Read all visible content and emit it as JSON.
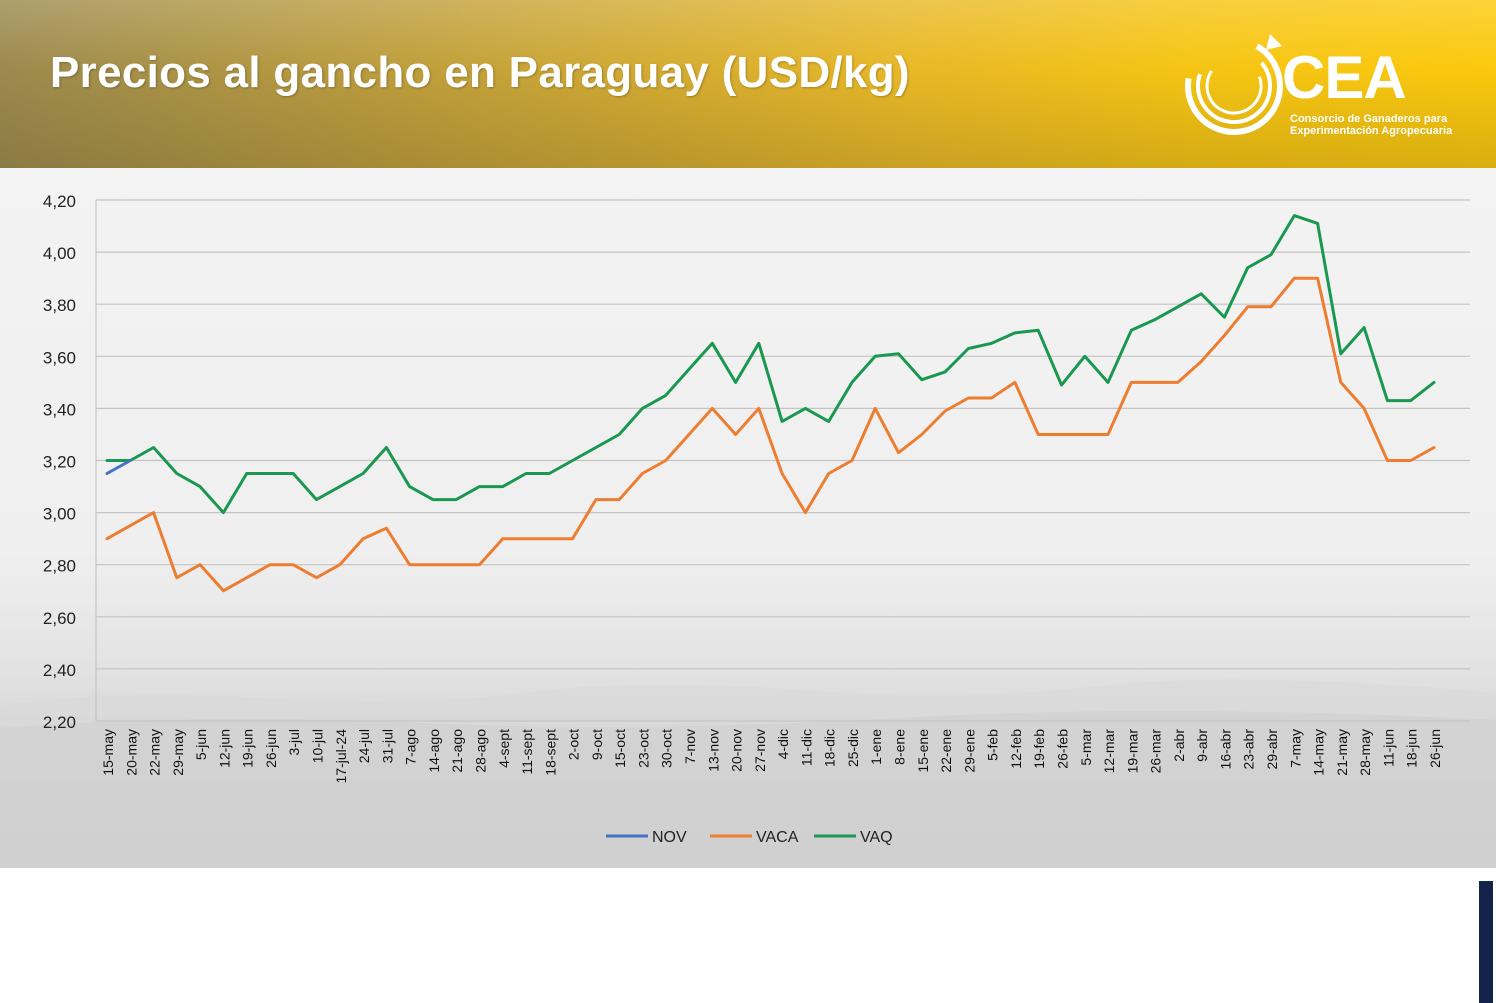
{
  "header": {
    "title": "Precios al gancho en Paraguay (USD/kg)"
  },
  "logo": {
    "name": "CEA",
    "subtitle_line1": "Consorcio de Ganaderos para",
    "subtitle_line2": "Experimentación Agropecuaria"
  },
  "colors": {
    "NOV": "#4472c4",
    "VACA": "#ed7d31",
    "VAQ": "#1a9850",
    "header_accent": "#f6c514",
    "side_bar": "#14234b"
  },
  "chart_data": {
    "type": "line",
    "title": "Precios al gancho en Paraguay (USD/kg)",
    "xlabel": "",
    "ylabel": "",
    "ylim": [
      2.2,
      4.2
    ],
    "yticks": [
      "2,20",
      "2,40",
      "2,60",
      "2,80",
      "3,00",
      "3,20",
      "3,40",
      "3,60",
      "3,80",
      "4,00",
      "4,20"
    ],
    "grid": true,
    "legend_position": "bottom",
    "categories": [
      "15-may",
      "20-may",
      "22-may",
      "29-may",
      "5-jun",
      "12-jun",
      "19-jun",
      "26-jun",
      "3-jul",
      "10-jul",
      "17-jul-24",
      "24-jul",
      "31-jul",
      "7-ago",
      "14-ago",
      "21-ago",
      "28-ago",
      "4-sept",
      "11-sept",
      "18-sept",
      "2-oct",
      "9-oct",
      "15-oct",
      "23-oct",
      "30-oct",
      "7-nov",
      "13-nov",
      "20-nov",
      "27-nov",
      "4-dic",
      "11-dic",
      "18-dic",
      "25-dic",
      "1-ene",
      "8-ene",
      "15-ene",
      "22-ene",
      "29-ene",
      "5-feb",
      "12-feb",
      "19-feb",
      "26-feb",
      "5-mar",
      "12-mar",
      "19-mar",
      "26-mar",
      "2-abr",
      "9-abr",
      "16-abr",
      "23-abr",
      "29-abr",
      "7-may",
      "14-may",
      "21-may",
      "28-may",
      "11-jun",
      "18-jun",
      "26-jun"
    ],
    "series": [
      {
        "name": "NOV",
        "values": [
          3.15,
          3.2,
          null,
          null,
          null,
          null,
          null,
          null,
          null,
          null,
          null,
          null,
          null,
          null,
          null,
          null,
          null,
          null,
          null,
          null,
          null,
          null,
          null,
          null,
          null,
          null,
          null,
          null,
          null,
          null,
          null,
          null,
          null,
          null,
          null,
          null,
          null,
          null,
          null,
          null,
          null,
          null,
          null,
          null,
          null,
          null,
          null,
          null,
          null,
          null,
          null,
          null,
          null,
          null,
          null,
          null,
          null,
          null
        ]
      },
      {
        "name": "VACA",
        "values": [
          2.9,
          2.95,
          3.0,
          2.75,
          2.8,
          2.7,
          2.75,
          2.8,
          2.8,
          2.75,
          2.8,
          2.9,
          2.94,
          2.8,
          2.8,
          2.8,
          2.8,
          2.9,
          2.9,
          2.9,
          2.9,
          3.05,
          3.05,
          3.15,
          3.2,
          3.3,
          3.4,
          3.3,
          3.4,
          3.15,
          3.0,
          3.15,
          3.2,
          3.4,
          3.23,
          3.3,
          3.39,
          3.44,
          3.44,
          3.5,
          3.3,
          3.3,
          3.3,
          3.3,
          3.5,
          3.5,
          3.5,
          3.58,
          3.68,
          3.79,
          3.79,
          3.9,
          3.9,
          3.5,
          3.4,
          3.2,
          3.2,
          3.25
        ]
      },
      {
        "name": "VAQ",
        "values": [
          3.2,
          3.2,
          3.25,
          3.15,
          3.1,
          3.0,
          3.15,
          3.15,
          3.15,
          3.05,
          3.1,
          3.15,
          3.25,
          3.1,
          3.05,
          3.05,
          3.1,
          3.1,
          3.15,
          3.15,
          3.2,
          3.25,
          3.3,
          3.4,
          3.45,
          3.55,
          3.65,
          3.5,
          3.65,
          3.35,
          3.4,
          3.35,
          3.5,
          3.6,
          3.61,
          3.51,
          3.54,
          3.63,
          3.65,
          3.69,
          3.7,
          3.49,
          3.6,
          3.5,
          3.7,
          3.74,
          3.79,
          3.84,
          3.75,
          3.94,
          3.99,
          4.14,
          4.11,
          3.61,
          3.71,
          3.43,
          3.43,
          3.5
        ]
      }
    ]
  }
}
